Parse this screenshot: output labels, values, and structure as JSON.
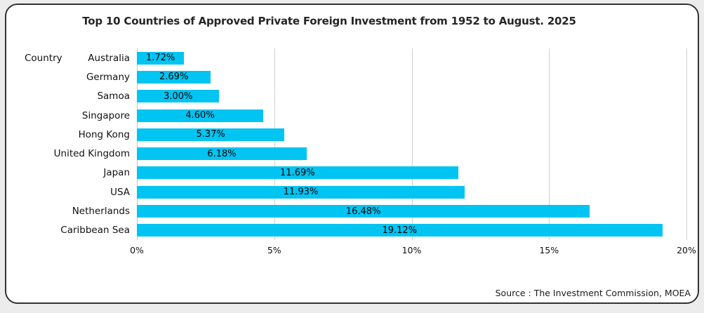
{
  "title": "Top 10 Countries of Approved Private Foreign Investment from 1952 to August. 2025",
  "y_axis_title": "Country",
  "source": "Source : The Investment Commission, MOEA",
  "colors": {
    "bar": "#00C4F2",
    "gridline": "#D0D0D0",
    "axis_line": "#C4C4C4",
    "card_border": "#333333",
    "card_background": "#FFFFFF",
    "page_background": "#ECECEC",
    "text": "#000000"
  },
  "chart_data": {
    "type": "bar",
    "orientation": "horizontal",
    "title": "Top 10 Countries of Approved Private Foreign Investment from 1952 to August. 2025",
    "xlabel": "",
    "ylabel": "Country",
    "categories": [
      "Australia",
      "Germany",
      "Samoa",
      "Singapore",
      "Hong Kong",
      "United Kingdom",
      "Japan",
      "USA",
      "Netherlands",
      "Caribbean Sea"
    ],
    "values": [
      1.72,
      2.69,
      3.0,
      4.6,
      5.37,
      6.18,
      11.69,
      11.93,
      16.48,
      19.12
    ],
    "data_labels": [
      "1.72%",
      "2.69%",
      "3.00%",
      "4.60%",
      "5.37%",
      "6.18%",
      "11.69%",
      "11.93%",
      "16.48%",
      "19.12%"
    ],
    "xlim": [
      0,
      20
    ],
    "x_ticks": [
      "0%",
      "5%",
      "10%",
      "15%",
      "20%"
    ],
    "grid": true,
    "legend": false,
    "data_label_position": "inside-center",
    "source_note": "Source : The Investment Commission, MOEA"
  }
}
